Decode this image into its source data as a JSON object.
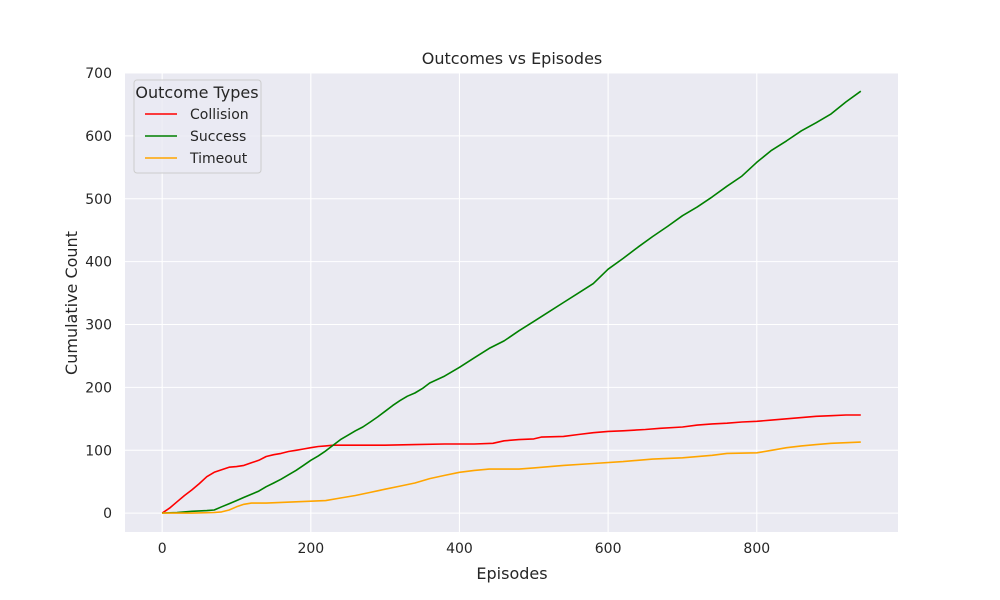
{
  "chart_data": {
    "type": "line",
    "title": "Outcomes vs Episodes",
    "xlabel": "Episodes",
    "ylabel": "Cumulative Count",
    "xlim": [
      -50,
      990
    ],
    "ylim": [
      -30,
      700
    ],
    "xticks": [
      0,
      200,
      400,
      600,
      800
    ],
    "yticks": [
      0,
      100,
      200,
      300,
      400,
      500,
      600,
      700
    ],
    "grid": true,
    "background": "#eaeaf2",
    "grid_color": "#ffffff",
    "legend": {
      "title": "Outcome Types",
      "placement": "top-left"
    },
    "series": [
      {
        "name": "Collision",
        "color": "#ff0000",
        "points": [
          [
            0,
            0
          ],
          [
            10,
            8
          ],
          [
            20,
            18
          ],
          [
            30,
            28
          ],
          [
            40,
            37
          ],
          [
            50,
            47
          ],
          [
            60,
            58
          ],
          [
            70,
            65
          ],
          [
            80,
            69
          ],
          [
            90,
            73
          ],
          [
            100,
            74
          ],
          [
            110,
            76
          ],
          [
            120,
            80
          ],
          [
            130,
            84
          ],
          [
            140,
            90
          ],
          [
            150,
            93
          ],
          [
            160,
            95
          ],
          [
            170,
            98
          ],
          [
            180,
            100
          ],
          [
            190,
            102
          ],
          [
            200,
            104
          ],
          [
            210,
            106
          ],
          [
            220,
            107
          ],
          [
            230,
            108
          ],
          [
            240,
            108
          ],
          [
            260,
            108
          ],
          [
            300,
            108
          ],
          [
            340,
            109
          ],
          [
            380,
            110
          ],
          [
            420,
            110
          ],
          [
            445,
            111
          ],
          [
            460,
            115
          ],
          [
            480,
            117
          ],
          [
            500,
            118
          ],
          [
            510,
            121
          ],
          [
            540,
            122
          ],
          [
            560,
            125
          ],
          [
            580,
            128
          ],
          [
            600,
            130
          ],
          [
            620,
            131
          ],
          [
            650,
            133
          ],
          [
            670,
            135
          ],
          [
            700,
            137
          ],
          [
            720,
            140
          ],
          [
            740,
            142
          ],
          [
            760,
            143
          ],
          [
            780,
            145
          ],
          [
            800,
            146
          ],
          [
            820,
            148
          ],
          [
            840,
            150
          ],
          [
            860,
            152
          ],
          [
            880,
            154
          ],
          [
            900,
            155
          ],
          [
            920,
            156
          ],
          [
            940,
            156
          ]
        ]
      },
      {
        "name": "Success",
        "color": "#008000",
        "points": [
          [
            0,
            0
          ],
          [
            20,
            1
          ],
          [
            40,
            3
          ],
          [
            60,
            4
          ],
          [
            70,
            5
          ],
          [
            80,
            10
          ],
          [
            90,
            15
          ],
          [
            100,
            20
          ],
          [
            110,
            25
          ],
          [
            120,
            30
          ],
          [
            130,
            35
          ],
          [
            140,
            42
          ],
          [
            150,
            48
          ],
          [
            160,
            54
          ],
          [
            170,
            61
          ],
          [
            180,
            68
          ],
          [
            190,
            76
          ],
          [
            200,
            84
          ],
          [
            210,
            91
          ],
          [
            220,
            99
          ],
          [
            230,
            108
          ],
          [
            240,
            117
          ],
          [
            250,
            124
          ],
          [
            260,
            131
          ],
          [
            270,
            137
          ],
          [
            280,
            145
          ],
          [
            290,
            153
          ],
          [
            300,
            162
          ],
          [
            310,
            171
          ],
          [
            320,
            179
          ],
          [
            330,
            186
          ],
          [
            340,
            191
          ],
          [
            350,
            198
          ],
          [
            360,
            207
          ],
          [
            380,
            218
          ],
          [
            400,
            232
          ],
          [
            420,
            247
          ],
          [
            440,
            262
          ],
          [
            460,
            274
          ],
          [
            480,
            290
          ],
          [
            500,
            305
          ],
          [
            520,
            320
          ],
          [
            540,
            335
          ],
          [
            560,
            350
          ],
          [
            580,
            365
          ],
          [
            600,
            388
          ],
          [
            620,
            405
          ],
          [
            640,
            423
          ],
          [
            660,
            440
          ],
          [
            680,
            456
          ],
          [
            700,
            473
          ],
          [
            720,
            487
          ],
          [
            740,
            503
          ],
          [
            760,
            520
          ],
          [
            780,
            536
          ],
          [
            800,
            558
          ],
          [
            820,
            577
          ],
          [
            840,
            592
          ],
          [
            860,
            608
          ],
          [
            880,
            621
          ],
          [
            900,
            635
          ],
          [
            920,
            654
          ],
          [
            940,
            671
          ]
        ]
      },
      {
        "name": "Timeout",
        "color": "#ffa500",
        "points": [
          [
            0,
            0
          ],
          [
            40,
            0
          ],
          [
            70,
            1
          ],
          [
            80,
            2
          ],
          [
            90,
            5
          ],
          [
            100,
            10
          ],
          [
            110,
            14
          ],
          [
            120,
            16
          ],
          [
            140,
            16
          ],
          [
            160,
            17
          ],
          [
            180,
            18
          ],
          [
            200,
            19
          ],
          [
            220,
            20
          ],
          [
            240,
            24
          ],
          [
            260,
            28
          ],
          [
            280,
            33
          ],
          [
            300,
            38
          ],
          [
            320,
            43
          ],
          [
            340,
            48
          ],
          [
            360,
            55
          ],
          [
            380,
            60
          ],
          [
            400,
            65
          ],
          [
            420,
            68
          ],
          [
            440,
            70
          ],
          [
            480,
            70
          ],
          [
            500,
            72
          ],
          [
            540,
            76
          ],
          [
            580,
            79
          ],
          [
            620,
            82
          ],
          [
            640,
            84
          ],
          [
            660,
            86
          ],
          [
            700,
            88
          ],
          [
            740,
            92
          ],
          [
            760,
            95
          ],
          [
            800,
            96
          ],
          [
            820,
            100
          ],
          [
            840,
            104
          ],
          [
            860,
            107
          ],
          [
            880,
            109
          ],
          [
            900,
            111
          ],
          [
            920,
            112
          ],
          [
            940,
            113
          ]
        ]
      }
    ]
  }
}
